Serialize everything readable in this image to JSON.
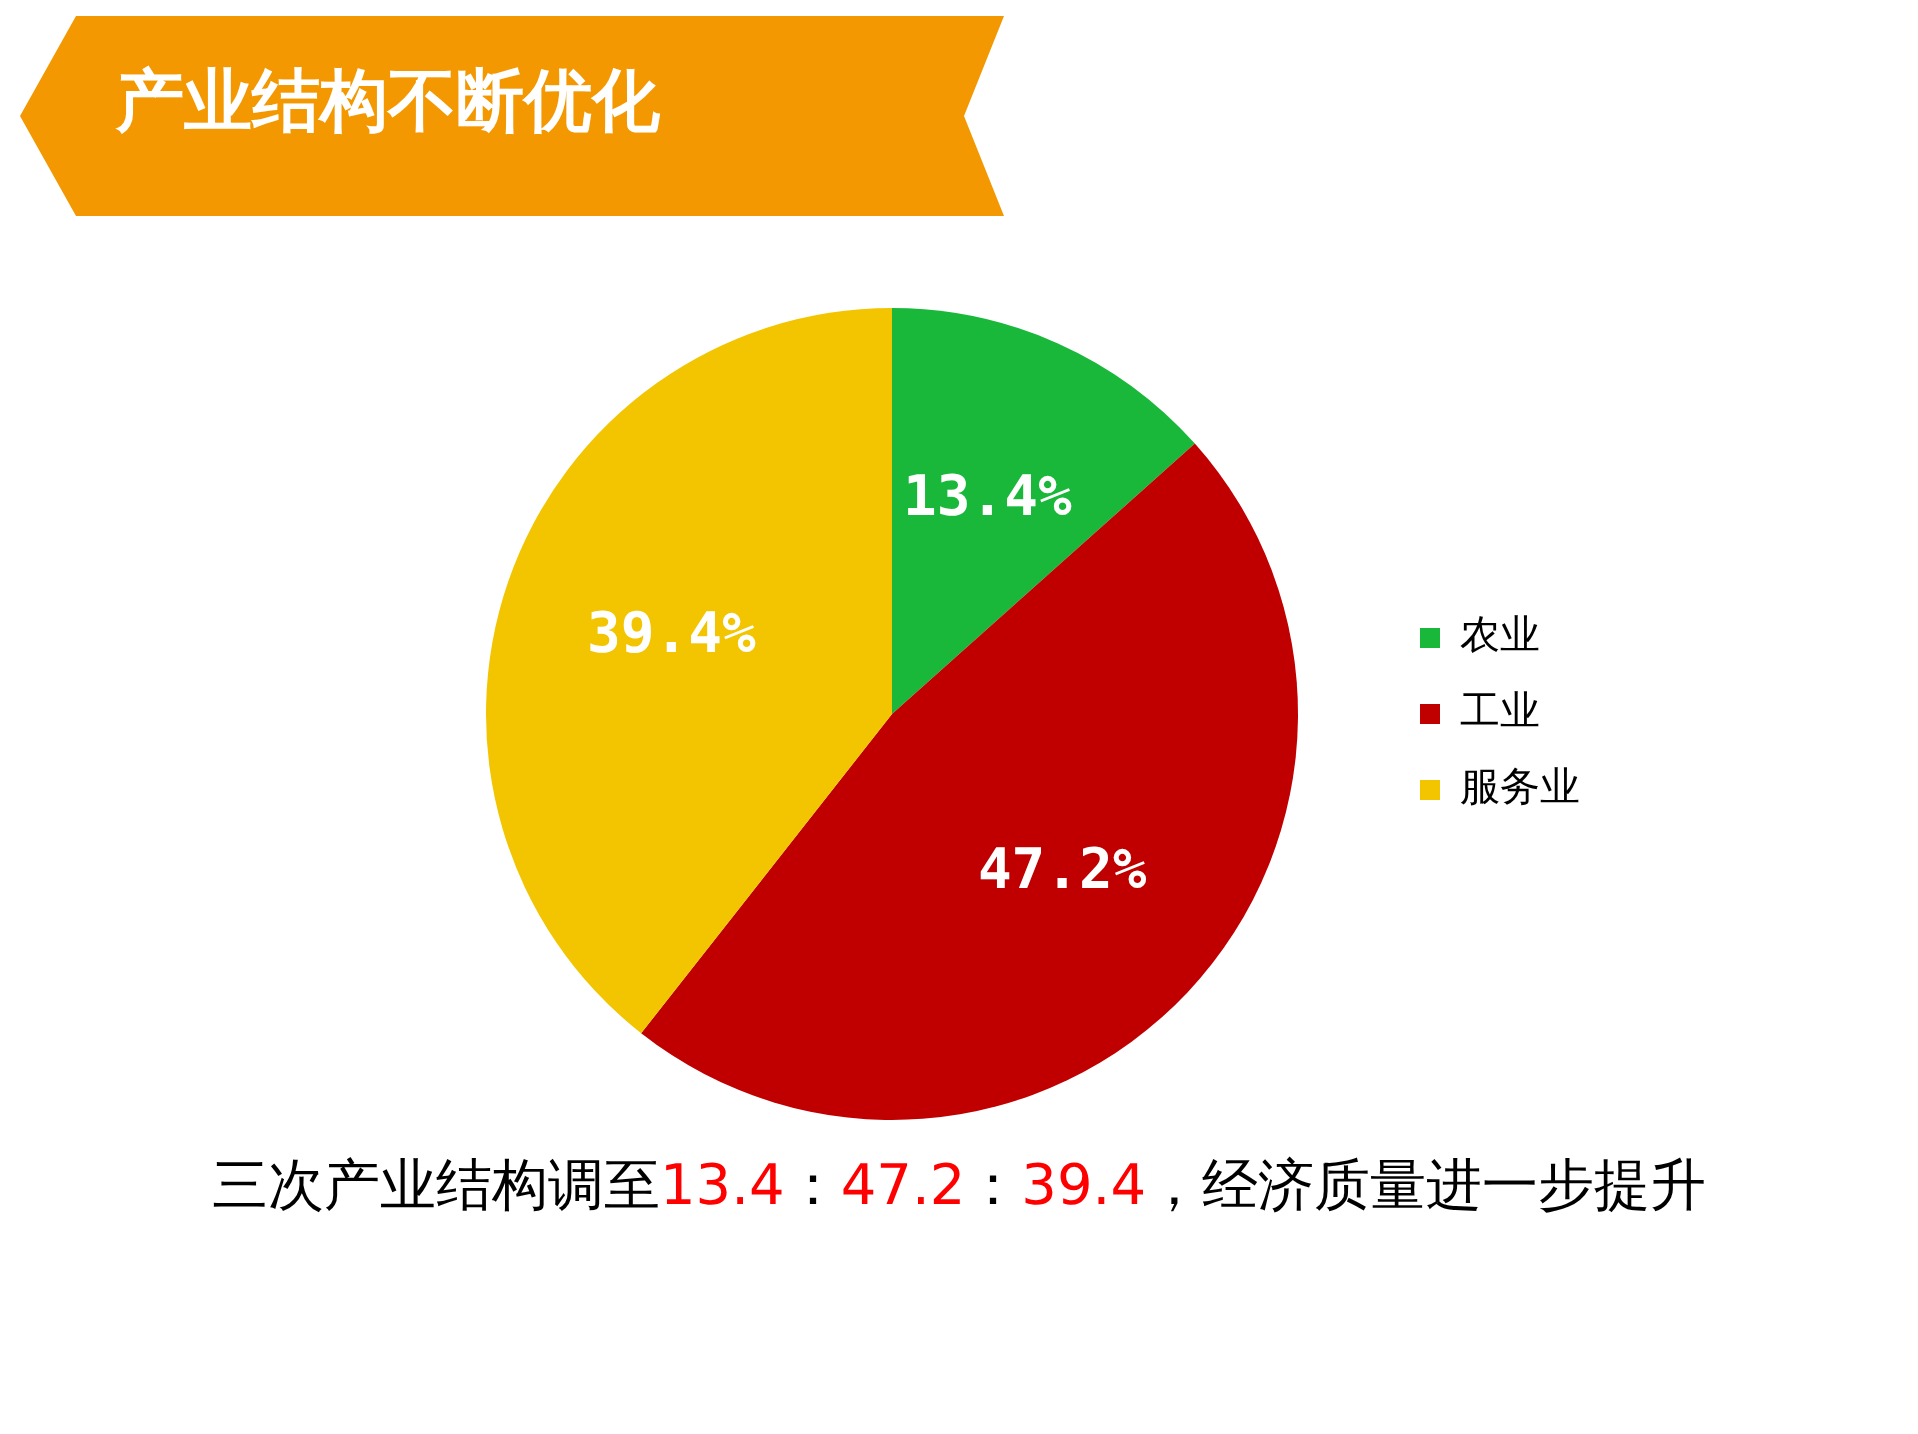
{
  "chart_data": {
    "type": "pie",
    "title": "产业结构不断优化",
    "categories": [
      "农业",
      "工业",
      "服务业"
    ],
    "values": [
      13.4,
      47.2,
      39.4
    ],
    "colors": [
      "#1ab83a",
      "#c00000",
      "#f2c500"
    ],
    "value_labels": [
      "13.4%",
      "47.2%",
      "39.4%"
    ],
    "legend": "right",
    "annotations": [
      "三次产业结构调至13.4：47.2：39.4，经济质量进一步提升"
    ]
  }
}
